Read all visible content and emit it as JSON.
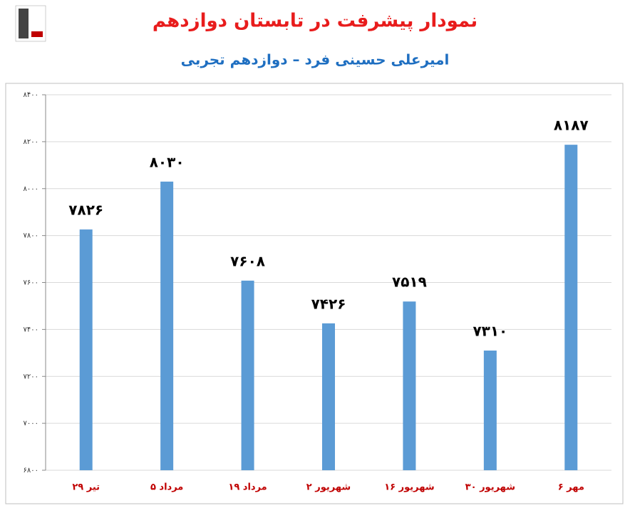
{
  "chart_data": {
    "type": "bar",
    "title": "نمودار پیشرفت در تابستان دوازدهم",
    "subtitle": "امیرعلی حسینی فرد – دوازدهم تجربی",
    "categories": [
      "۲۹ تیر",
      "۵ مرداد",
      "۱۹ مرداد",
      "۲ شهریور",
      "۱۶ شهریور",
      "۳۰ شهریور",
      "۶ مهر"
    ],
    "values": [
      7826,
      8030,
      7608,
      7426,
      7519,
      7310,
      8187
    ],
    "value_labels": [
      "۷۸۲۶",
      "۸۰۳۰",
      "۷۶۰۸",
      "۷۴۲۶",
      "۷۵۱۹",
      "۷۳۱۰",
      "۸۱۸۷"
    ],
    "color": "#5b9bd5",
    "ylim": [
      6800,
      8400
    ],
    "yticks": [
      {
        "value": 6800,
        "label": "۶۸۰۰"
      },
      {
        "value": 7000,
        "label": "۷۰۰۰"
      },
      {
        "value": 7200,
        "label": "۷۲۰۰"
      },
      {
        "value": 7400,
        "label": "۷۴۰۰"
      },
      {
        "value": 7600,
        "label": "۷۶۰۰"
      },
      {
        "value": 7800,
        "label": "۷۸۰۰"
      },
      {
        "value": 8000,
        "label": "۸۰۰۰"
      },
      {
        "value": 8200,
        "label": "۸۲۰۰"
      },
      {
        "value": 8400,
        "label": "۸۴۰۰"
      }
    ],
    "grid": true
  }
}
